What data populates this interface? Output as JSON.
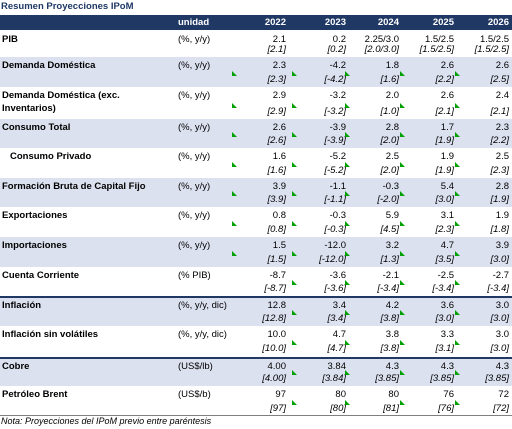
{
  "title": "Resumen Proyecciones IPoM",
  "header": {
    "unit_label": "unidad",
    "years": [
      "2022",
      "2023",
      "2024",
      "2025",
      "2026"
    ]
  },
  "rows": [
    {
      "label": "PIB",
      "unit": "(%, y/y)",
      "values": [
        "2.1",
        "0.2",
        "2.25/3.0",
        "1.5/2.5",
        "1.5/2.5"
      ],
      "prev": [
        "[2.1]",
        "[0.2]",
        "[2.0/3.0]",
        "[1.5/2.5]",
        "[1.5/2.5]"
      ]
    },
    {
      "label": "Demanda Doméstica",
      "unit": "(%, y/y)",
      "values": [
        "2.3",
        "-4.2",
        "1.8",
        "2.6",
        "2.6"
      ],
      "prev": [
        "[2.3]",
        "[-4.2]",
        "[1.6]",
        "[2.2]",
        "[2.5]"
      ]
    },
    {
      "label": "Demanda Doméstica (exc. Inventarios)",
      "unit": "(%, y/y)",
      "values": [
        "2.9",
        "-3.2",
        "2.0",
        "2.6",
        "2.4"
      ],
      "prev": [
        "[2.9]",
        "[-3.2]",
        "[1.0]",
        "[2.1]",
        "[2.1]"
      ]
    },
    {
      "label": "Consumo Total",
      "unit": "(%, y/y)",
      "values": [
        "2.6",
        "-3.9",
        "2.8",
        "1.7",
        "2.3"
      ],
      "prev": [
        "[2.6]",
        "[-3.9]",
        "[2.0]",
        "[1.9]",
        "[2.2]"
      ]
    },
    {
      "label": "Consumo Privado",
      "unit": "(%, y/y)",
      "values": [
        "1.6",
        "-5.2",
        "2.5",
        "1.9",
        "2.5"
      ],
      "prev": [
        "[1.6]",
        "[-5.2]",
        "[2.0]",
        "[1.9]",
        "[2.3]"
      ]
    },
    {
      "label": "Formación Bruta de Capital Fijo",
      "unit": "(%, y/y)",
      "values": [
        "3.9",
        "-1.1",
        "-0.3",
        "5.4",
        "2.8"
      ],
      "prev": [
        "[3.9]",
        "[-1.1]",
        "[-2.0]",
        "[3.0]",
        "[1.9]"
      ]
    },
    {
      "label": "Exportaciones",
      "unit": "(%, y/y)",
      "values": [
        "0.8",
        "-0.3",
        "5.9",
        "3.1",
        "1.9"
      ],
      "prev": [
        "[0.8]",
        "[-0.3]",
        "[4.5]",
        "[2.3]",
        "[1.8]"
      ]
    },
    {
      "label": "Importaciones",
      "unit": "(%, y/y)",
      "values": [
        "1.5",
        "-12.0",
        "3.2",
        "4.7",
        "3.9"
      ],
      "prev": [
        "[1.5]",
        "[-12.0]",
        "[1.3]",
        "[3.5]",
        "[3.0]"
      ]
    },
    {
      "label": "Cuenta Corriente",
      "unit": "(% PIB)",
      "values": [
        "-8.7",
        "-3.6",
        "-2.1",
        "-2.5",
        "-2.7"
      ],
      "prev": [
        "[-8.7]",
        "[-3.6]",
        "[-3.4]",
        "[-3.4]",
        "[-3.4]"
      ]
    },
    {
      "label": "Inflación",
      "unit": "(%, y/y, dic)",
      "values": [
        "12.8",
        "3.4",
        "4.2",
        "3.6",
        "3.0"
      ],
      "prev": [
        "[12.8]",
        "[3.4]",
        "[3.8]",
        "[3.0]",
        "[3.0]"
      ]
    },
    {
      "label": "Inflación sin volátiles",
      "unit": "(%, y/y, dic)",
      "values": [
        "10.0",
        "4.7",
        "3.8",
        "3.3",
        "3.0"
      ],
      "prev": [
        "[10.0]",
        "[4.7]",
        "[3.8]",
        "[3.1]",
        "[3.0]"
      ]
    },
    {
      "label": "Cobre",
      "unit": "(US$/lb)",
      "values": [
        "4.00",
        "3.84",
        "4.3",
        "4.3",
        "4.3"
      ],
      "prev": [
        "[4.00]",
        "[3.84]",
        "[3.85]",
        "[3.85]",
        "[3.85]"
      ]
    },
    {
      "label": "Petróleo Brent",
      "unit": "(US$/b)",
      "values": [
        "97",
        "80",
        "80",
        "76",
        "72"
      ],
      "prev": [
        "[97]",
        "[80]",
        "[81]",
        "[76]",
        "[72]"
      ]
    }
  ],
  "note": "Nota: Proyecciones del IPoM previo entre paréntesis",
  "colors": {
    "header_bg": "#1f3864",
    "shade_bg": "#dce1f0",
    "marker": "#00a000",
    "title": "#1f3864"
  }
}
